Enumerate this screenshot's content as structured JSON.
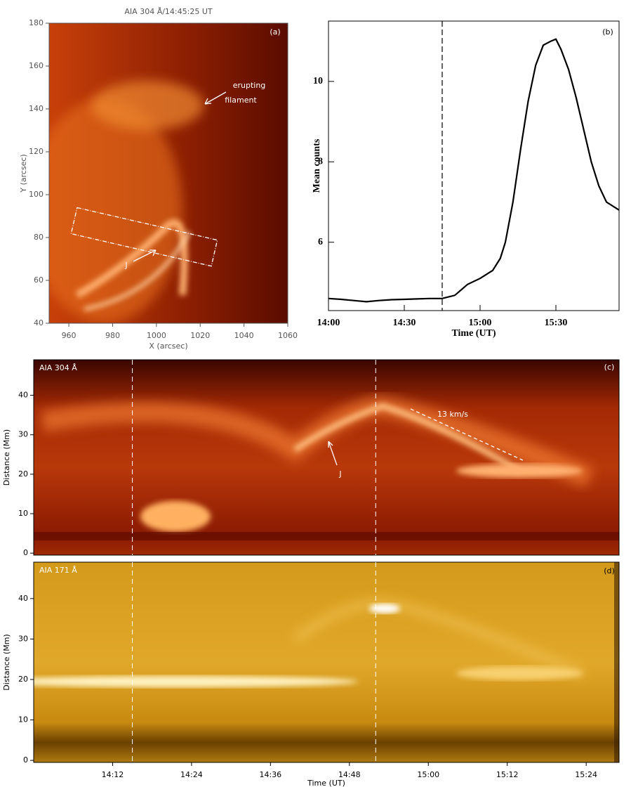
{
  "chart_data": [
    {
      "type": "image",
      "title": "AIA 304 Å/14:45:25 UT",
      "panel": "(a)",
      "xlabel": "X (arcsec)",
      "ylabel": "Y (arcsec)",
      "xlim": [
        951,
        1060
      ],
      "xticks": [
        960,
        980,
        1000,
        1020,
        1040,
        1060
      ],
      "ylim": [
        40,
        180
      ],
      "yticks": [
        40,
        60,
        80,
        100,
        120,
        140,
        160,
        180
      ],
      "annotations": [
        "erupting",
        "filament",
        "J"
      ]
    },
    {
      "type": "line",
      "panel": "(b)",
      "xlabel": "Time (UT)",
      "ylabel": "Mean counts",
      "color": "#000000",
      "x": [
        "14:00",
        "14:05",
        "14:10",
        "14:15",
        "14:20",
        "14:25",
        "14:30",
        "14:35",
        "14:40",
        "14:45",
        "14:50",
        "14:55",
        "15:00",
        "15:05",
        "15:08",
        "15:10",
        "15:13",
        "15:16",
        "15:19",
        "15:22",
        "15:25",
        "15:28",
        "15:30",
        "15:32",
        "15:35",
        "15:38",
        "15:41",
        "15:44",
        "15:47",
        "15:50",
        "15:55"
      ],
      "values": [
        4.6,
        4.58,
        4.55,
        4.52,
        4.55,
        4.57,
        4.58,
        4.59,
        4.6,
        4.6,
        4.68,
        4.95,
        5.1,
        5.3,
        5.6,
        6.0,
        7.0,
        8.3,
        9.5,
        10.4,
        10.9,
        11.0,
        11.05,
        10.8,
        10.3,
        9.6,
        8.8,
        8.0,
        7.4,
        7.0,
        6.8
      ],
      "xlim": [
        "14:00",
        "15:55"
      ],
      "xticks": [
        "14:00",
        "14:30",
        "15:00",
        "15:30"
      ],
      "ylim": [
        4.3,
        11.5
      ],
      "yticks": [
        6,
        8,
        10
      ],
      "vline": "14:45"
    },
    {
      "type": "image",
      "title": "AIA 304 Å",
      "panel": "(c)",
      "ylabel": "Distance (Mm)",
      "xlim": [
        "14:00",
        "15:29"
      ],
      "ylim": [
        -0.5,
        49
      ],
      "yticks": [
        0,
        10,
        20,
        30,
        40
      ],
      "vlines": [
        "14:15",
        "14:52"
      ],
      "annotations": [
        "13 km/s",
        "J"
      ]
    },
    {
      "type": "image",
      "title": "AIA 171 Å",
      "panel": "(d)",
      "xlabel": "Time (UT)",
      "ylabel": "Distance (Mm)",
      "xlim": [
        "14:00",
        "15:29"
      ],
      "xticks": [
        "14:12",
        "14:24",
        "14:36",
        "14:48",
        "15:00",
        "15:12",
        "15:24"
      ],
      "ylim": [
        -0.5,
        49
      ],
      "yticks": [
        0,
        10,
        20,
        30,
        40
      ],
      "vlines": [
        "14:15",
        "14:52"
      ]
    }
  ]
}
